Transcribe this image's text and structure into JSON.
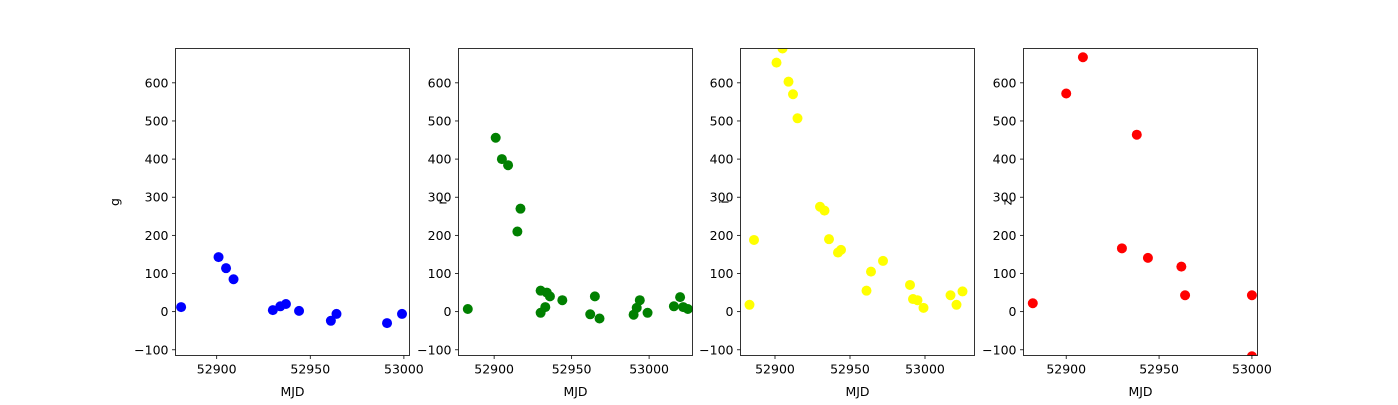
{
  "chart_data": [
    {
      "type": "scatter",
      "xlabel": "MJD",
      "ylabel": "g",
      "xlim": [
        52878,
        53003
      ],
      "ylim": [
        -115,
        690
      ],
      "xticks": [
        52900,
        52950,
        53000
      ],
      "xtick_labels": [
        "52900",
        "52950",
        "53000"
      ],
      "yticks": [
        -100,
        0,
        100,
        200,
        300,
        400,
        500,
        600
      ],
      "ytick_labels": [
        "−100",
        "0",
        "100",
        "200",
        "300",
        "400",
        "500",
        "600"
      ],
      "color": "#0000ff",
      "grid": false,
      "x": [
        52881,
        52901,
        52905,
        52909,
        52930,
        52934,
        52937,
        52944,
        52961,
        52964,
        52991,
        52999
      ],
      "y": [
        12,
        143,
        114,
        85,
        4,
        14,
        20,
        2,
        -24,
        -6,
        -30,
        -6
      ]
    },
    {
      "type": "scatter",
      "xlabel": "MJD",
      "ylabel": "r",
      "xlim": [
        52877,
        53028
      ],
      "ylim": [
        -115,
        690
      ],
      "xticks": [
        52900,
        52950,
        53000
      ],
      "xtick_labels": [
        "52900",
        "52950",
        "53000"
      ],
      "yticks": [
        -100,
        0,
        100,
        200,
        300,
        400,
        500,
        600
      ],
      "ytick_labels": [
        "−100",
        "0",
        "100",
        "200",
        "300",
        "400",
        "500",
        "600"
      ],
      "color": "#008000",
      "grid": false,
      "x": [
        52883,
        52901,
        52905,
        52909,
        52915,
        52917,
        52930,
        52930,
        52933,
        52934,
        52936,
        52944,
        52962,
        52965,
        52968,
        52990,
        52992,
        52994,
        52999,
        53016,
        53020,
        53022,
        53025
      ],
      "y": [
        7,
        456,
        400,
        384,
        210,
        270,
        -3,
        55,
        12,
        50,
        40,
        30,
        -7,
        40,
        -18,
        -8,
        10,
        30,
        -3,
        14,
        38,
        12,
        7
      ]
    },
    {
      "type": "scatter",
      "xlabel": "MJD",
      "ylabel": "i",
      "xlim": [
        52877,
        53033
      ],
      "ylim": [
        -115,
        690
      ],
      "xticks": [
        52900,
        52950,
        53000
      ],
      "xtick_labels": [
        "52900",
        "52950",
        "53000"
      ],
      "yticks": [
        -100,
        0,
        100,
        200,
        300,
        400,
        500,
        600
      ],
      "ytick_labels": [
        "−100",
        "0",
        "100",
        "200",
        "300",
        "400",
        "500",
        "600"
      ],
      "color": "#ffff00",
      "grid": false,
      "x": [
        52883,
        52886,
        52901,
        52905,
        52909,
        52912,
        52915,
        52930,
        52933,
        52936,
        52942,
        52944,
        52961,
        52964,
        52972,
        52990,
        52992,
        52995,
        52999,
        53017,
        53021,
        53025
      ],
      "y": [
        18,
        188,
        653,
        690,
        603,
        570,
        507,
        275,
        265,
        190,
        155,
        162,
        55,
        105,
        133,
        70,
        33,
        30,
        10,
        43,
        18,
        53
      ]
    },
    {
      "type": "scatter",
      "xlabel": "MJD",
      "ylabel": "z",
      "xlim": [
        52877,
        53003
      ],
      "ylim": [
        -115,
        690
      ],
      "xticks": [
        52900,
        52950,
        53000
      ],
      "xtick_labels": [
        "52900",
        "52950",
        "53000"
      ],
      "yticks": [
        -100,
        0,
        100,
        200,
        300,
        400,
        500,
        600
      ],
      "ytick_labels": [
        "−100",
        "0",
        "100",
        "200",
        "300",
        "400",
        "500",
        "600"
      ],
      "color": "#ff0000",
      "grid": false,
      "x": [
        52882,
        52900,
        52909,
        52930,
        52938,
        52944,
        52962,
        52964,
        53000,
        53000
      ],
      "y": [
        22,
        572,
        667,
        166,
        464,
        141,
        118,
        43,
        43,
        -117
      ]
    }
  ]
}
